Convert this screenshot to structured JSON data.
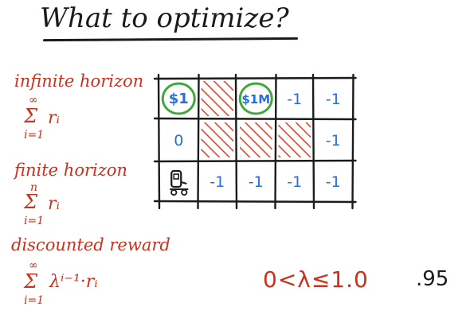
{
  "title": "What to optimize?",
  "left_panel": {
    "infinite": {
      "heading": "infinite horizon",
      "sum_sym": "Σ",
      "upper": "∞",
      "lower": "i=1",
      "term": "rᵢ"
    },
    "finite": {
      "heading": "finite horizon",
      "sum_sym": "Σ",
      "upper": "n",
      "lower": "i=1",
      "term": "rᵢ"
    },
    "discounted": {
      "heading": "discounted reward",
      "sum_sym": "Σ",
      "upper": "∞",
      "lower": "i=1",
      "term": "λⁱ⁻¹·rᵢ"
    }
  },
  "grid": {
    "rows": 3,
    "cols": 5,
    "cells": [
      [
        {
          "type": "reward",
          "label": "$1"
        },
        {
          "type": "blocked"
        },
        {
          "type": "reward",
          "label": "$1M"
        },
        {
          "type": "value",
          "label": "-1"
        },
        {
          "type": "value",
          "label": "-1"
        }
      ],
      [
        {
          "type": "value",
          "label": "0"
        },
        {
          "type": "blocked"
        },
        {
          "type": "blocked"
        },
        {
          "type": "blocked"
        },
        {
          "type": "value",
          "label": "-1"
        }
      ],
      [
        {
          "type": "agent",
          "icon": "robot-icon"
        },
        {
          "type": "value",
          "label": "-1"
        },
        {
          "type": "value",
          "label": "-1"
        },
        {
          "type": "value",
          "label": "-1"
        },
        {
          "type": "value",
          "label": "-1"
        }
      ]
    ],
    "colors": {
      "lines": "#1b1b1b",
      "hatch": "#d9472f",
      "value_text": "#2a6fd6",
      "reward_circle": "#3ea83a"
    }
  },
  "gamma_range": "0<λ≤1.0",
  "gamma_value": ".95"
}
